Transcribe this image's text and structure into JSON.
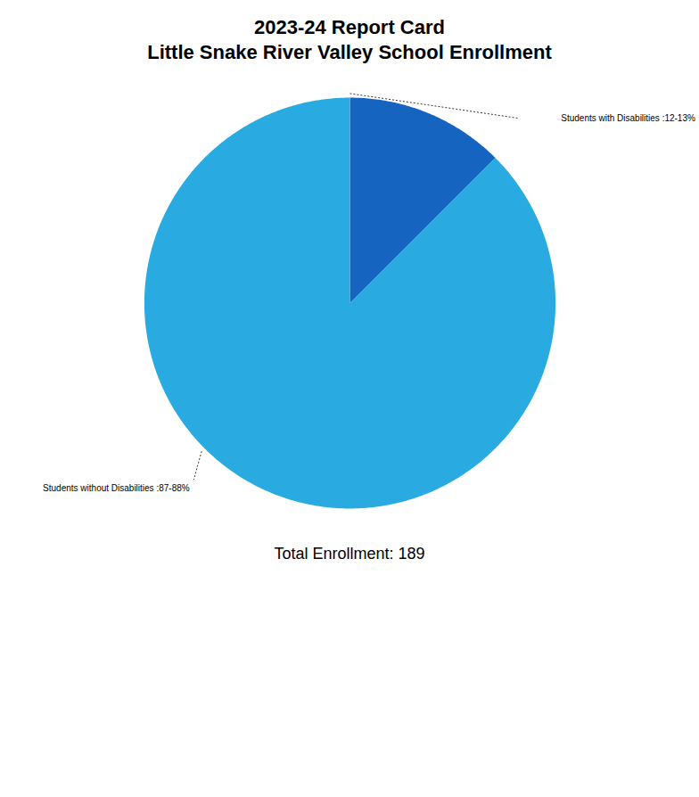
{
  "chart_data": {
    "type": "pie",
    "title": "2023-24 Report Card",
    "subtitle": "Little Snake River Valley School Enrollment",
    "caption": "Total Enrollment: 189",
    "categories": [
      "Students with Disabilities :12-13%",
      "Students without Disabilities :87-88%"
    ],
    "values": [
      12.5,
      87.5
    ],
    "colors": [
      "#1565C0",
      "#29ABE2"
    ]
  }
}
